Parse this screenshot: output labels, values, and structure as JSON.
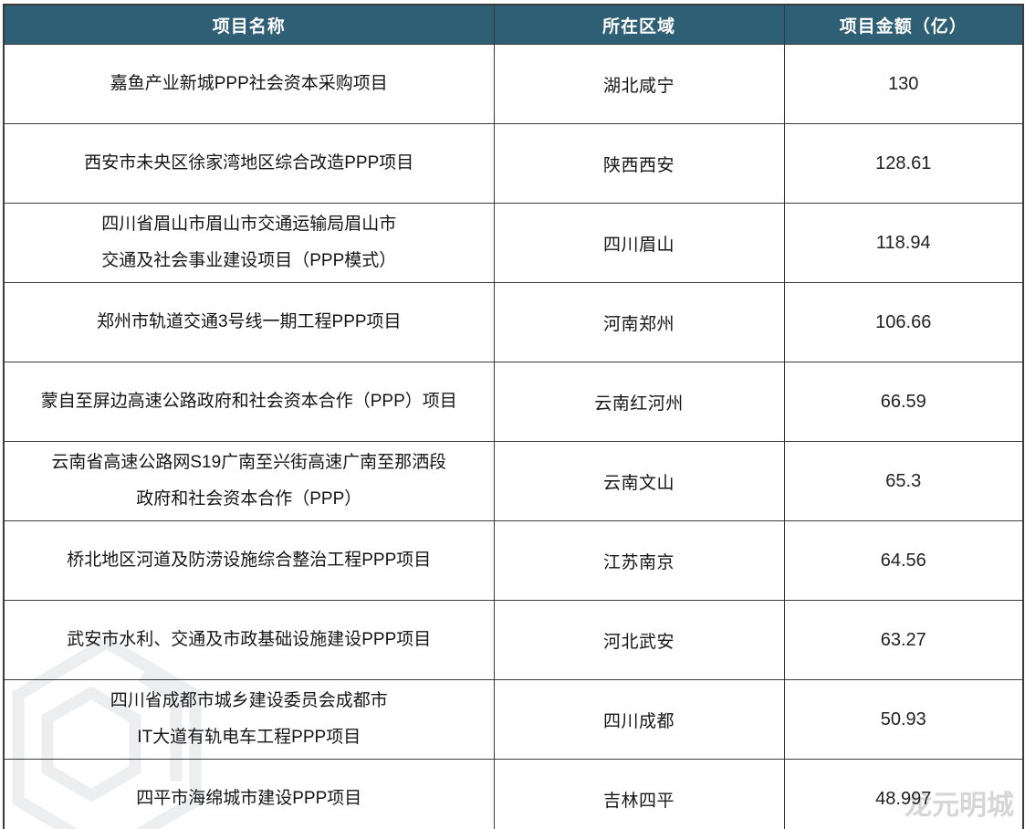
{
  "chart_data": {
    "type": "table",
    "columns": [
      "项目名称",
      "所在区域",
      "项目金额（亿）"
    ],
    "rows": [
      {
        "name_lines": [
          "嘉鱼产业新城PPP社会资本采购项目"
        ],
        "region": "湖北咸宁",
        "amount": "130"
      },
      {
        "name_lines": [
          "西安市未央区徐家湾地区综合改造PPP项目"
        ],
        "region": "陕西西安",
        "amount": "128.61"
      },
      {
        "name_lines": [
          "四川省眉山市眉山市交通运输局眉山市",
          "交通及社会事业建设项目（PPP模式）"
        ],
        "region": "四川眉山",
        "amount": "118.94"
      },
      {
        "name_lines": [
          "郑州市轨道交通3号线一期工程PPP项目"
        ],
        "region": "河南郑州",
        "amount": "106.66"
      },
      {
        "name_lines": [
          "蒙自至屏边高速公路政府和社会资本合作（PPP）项目"
        ],
        "region": "云南红河州",
        "amount": "66.59"
      },
      {
        "name_lines": [
          "云南省高速公路网S19广南至兴街高速广南至那洒段",
          "政府和社会资本合作（PPP）"
        ],
        "region": "云南文山",
        "amount": "65.3"
      },
      {
        "name_lines": [
          "桥北地区河道及防涝设施综合整治工程PPP项目"
        ],
        "region": "江苏南京",
        "amount": "64.56"
      },
      {
        "name_lines": [
          "武安市水利、交通及市政基础设施建设PPP项目"
        ],
        "region": "河北武安",
        "amount": "63.27"
      },
      {
        "name_lines": [
          "四川省成都市城乡建设委员会成都市",
          "IT大道有轨电车工程PPP项目"
        ],
        "region": "四川成都",
        "amount": "50.93"
      },
      {
        "name_lines": [
          "四平市海绵城市建设PPP项目"
        ],
        "region": "吉林四平",
        "amount": "48.997"
      }
    ]
  },
  "watermark": {
    "text": "龙元明城",
    "logo": "hexagon-company-logo"
  },
  "colors": {
    "header_bg": "#2f5f74",
    "header_text": "#ffffff",
    "border": "#3a3a3a",
    "cell_text": "#161616",
    "watermark": "#d6d6d6",
    "watermark_logo": "#eceef0"
  }
}
